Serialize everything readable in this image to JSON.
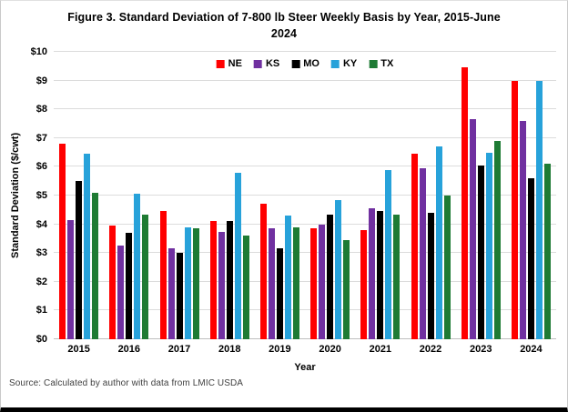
{
  "figure": {
    "title": "Figure 3. Standard Deviation of 7-800 lb Steer Weekly Basis by Year, 2015-June 2024",
    "source": "Source: Calculated by author with data from LMIC USDA"
  },
  "chart_data": {
    "type": "bar",
    "title": "Figure 3. Standard Deviation of 7-800 lb Steer Weekly Basis by Year, 2015-June 2024",
    "xlabel": "Year",
    "ylabel": "Standard Deviation ($/cwt)",
    "ylim": [
      0,
      10
    ],
    "y_tick_step": 1,
    "y_ticks": [
      "$0",
      "$1",
      "$2",
      "$3",
      "$4",
      "$5",
      "$6",
      "$7",
      "$8",
      "$9",
      "$10"
    ],
    "grid": true,
    "legend_position": "top-center",
    "categories": [
      "2015",
      "2016",
      "2017",
      "2018",
      "2019",
      "2020",
      "2021",
      "2022",
      "2023",
      "2024"
    ],
    "series": [
      {
        "name": "NE",
        "color": "#ff0000",
        "values": [
          6.8,
          3.95,
          4.45,
          4.1,
          4.7,
          3.85,
          3.8,
          6.45,
          9.45,
          9.0
        ]
      },
      {
        "name": "KS",
        "color": "#7030a0",
        "values": [
          4.15,
          3.25,
          3.15,
          3.75,
          3.85,
          4.0,
          4.55,
          5.95,
          7.65,
          7.6
        ]
      },
      {
        "name": "MO",
        "color": "#000000",
        "values": [
          5.5,
          3.7,
          3.0,
          4.1,
          3.15,
          4.35,
          4.45,
          4.4,
          6.05,
          5.6
        ]
      },
      {
        "name": "KY",
        "color": "#27a2da",
        "values": [
          6.45,
          5.05,
          3.9,
          5.8,
          4.3,
          4.85,
          5.9,
          6.7,
          6.5,
          9.0
        ]
      },
      {
        "name": "TX",
        "color": "#1e7b34",
        "values": [
          5.1,
          4.35,
          3.85,
          3.6,
          3.9,
          3.45,
          4.35,
          5.0,
          6.9,
          6.1
        ]
      }
    ]
  }
}
